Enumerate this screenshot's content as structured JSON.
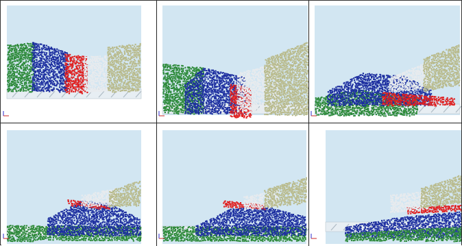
{
  "figure": {
    "panel_count": 6,
    "rows": 2,
    "columns": 3
  },
  "colors": {
    "sky": "#d2e6f2",
    "floor": "#e7eef3",
    "green": "#2d8a3a",
    "blue": "#1d2fa0",
    "red": "#e02020",
    "white": "#e8ebee",
    "khaki": "#b9bb8d",
    "screw": "#aebbc4"
  },
  "icons": {
    "axis_triad": "axis-triad-icon"
  }
}
